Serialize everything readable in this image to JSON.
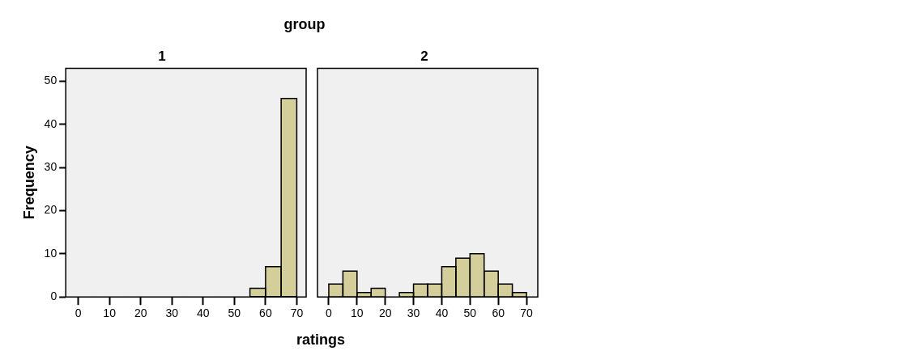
{
  "chart_data": [
    {
      "type": "histogram",
      "title": "group",
      "subtitle": "1",
      "xlabel": "ratings",
      "ylabel": "Frequency",
      "color": "#d3ce9a",
      "bins": [
        0,
        5,
        10,
        15,
        20,
        25,
        30,
        35,
        40,
        45,
        50,
        55,
        60,
        65,
        70
      ],
      "values": [
        0,
        0,
        0,
        0,
        0,
        0,
        0,
        0,
        0,
        0,
        0,
        2,
        7,
        46
      ],
      "xlim": [
        -4,
        73
      ],
      "xticks": [
        0,
        10,
        20,
        30,
        40,
        50,
        60,
        70
      ],
      "ylim": [
        0,
        53
      ],
      "yticks": [
        0,
        10,
        20,
        30,
        40,
        50
      ]
    },
    {
      "type": "histogram",
      "subtitle": "2",
      "color": "#d3ce9a",
      "tick_labels": "x",
      "bins": [
        0,
        5,
        10,
        15,
        20,
        25,
        30,
        35,
        40,
        45,
        50,
        55,
        60,
        65,
        70
      ],
      "values": [
        3,
        6,
        1,
        2,
        0,
        1,
        3,
        3,
        7,
        9,
        10,
        6,
        3,
        1
      ],
      "xlim": [
        -4,
        74
      ],
      "xticks": [
        0,
        10,
        20,
        30,
        40,
        50,
        60,
        70
      ],
      "ylim": [
        0,
        53
      ],
      "yticks": [
        0,
        10,
        20,
        30,
        40,
        50
      ]
    }
  ]
}
